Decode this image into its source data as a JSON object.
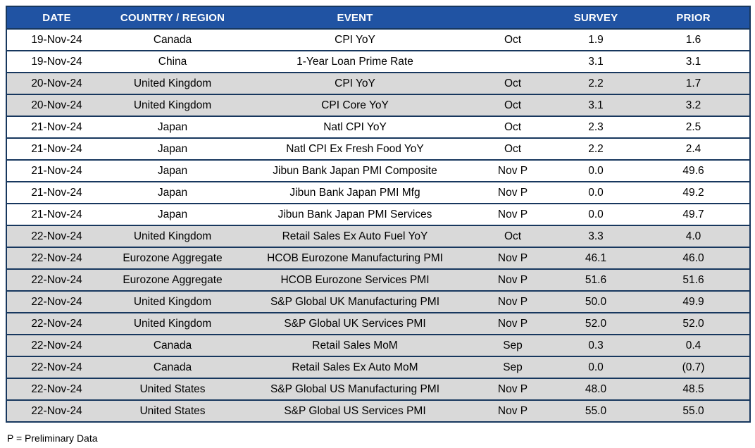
{
  "chart_data": {
    "type": "table",
    "title": "",
    "columns": [
      "DATE",
      "COUNTRY / REGION",
      "EVENT",
      "",
      "SURVEY",
      "PRIOR"
    ],
    "rows": [
      {
        "date": "19-Nov-24",
        "country": "Canada",
        "event": "CPI YoY",
        "period": "Oct",
        "survey": "1.9",
        "prior": "1.6"
      },
      {
        "date": "19-Nov-24",
        "country": "China",
        "event": "1-Year Loan Prime Rate",
        "period": "",
        "survey": "3.1",
        "prior": "3.1"
      },
      {
        "date": "20-Nov-24",
        "country": "United Kingdom",
        "event": "CPI YoY",
        "period": "Oct",
        "survey": "2.2",
        "prior": "1.7"
      },
      {
        "date": "20-Nov-24",
        "country": "United Kingdom",
        "event": "CPI Core YoY",
        "period": "Oct",
        "survey": "3.1",
        "prior": "3.2"
      },
      {
        "date": "21-Nov-24",
        "country": "Japan",
        "event": "Natl CPI YoY",
        "period": "Oct",
        "survey": "2.3",
        "prior": "2.5"
      },
      {
        "date": "21-Nov-24",
        "country": "Japan",
        "event": "Natl CPI Ex Fresh Food YoY",
        "period": "Oct",
        "survey": "2.2",
        "prior": "2.4"
      },
      {
        "date": "21-Nov-24",
        "country": "Japan",
        "event": "Jibun Bank Japan PMI Composite",
        "period": "Nov P",
        "survey": "0.0",
        "prior": "49.6"
      },
      {
        "date": "21-Nov-24",
        "country": "Japan",
        "event": "Jibun Bank Japan PMI Mfg",
        "period": "Nov P",
        "survey": "0.0",
        "prior": "49.2"
      },
      {
        "date": "21-Nov-24",
        "country": "Japan",
        "event": "Jibun Bank Japan PMI Services",
        "period": "Nov P",
        "survey": "0.0",
        "prior": "49.7"
      },
      {
        "date": "22-Nov-24",
        "country": "United Kingdom",
        "event": "Retail Sales Ex Auto Fuel YoY",
        "period": "Oct",
        "survey": "3.3",
        "prior": "4.0"
      },
      {
        "date": "22-Nov-24",
        "country": "Eurozone Aggregate",
        "event": "HCOB Eurozone Manufacturing PMI",
        "period": "Nov P",
        "survey": "46.1",
        "prior": "46.0"
      },
      {
        "date": "22-Nov-24",
        "country": "Eurozone Aggregate",
        "event": "HCOB Eurozone Services PMI",
        "period": "Nov P",
        "survey": "51.6",
        "prior": "51.6"
      },
      {
        "date": "22-Nov-24",
        "country": "United Kingdom",
        "event": "S&P Global UK Manufacturing PMI",
        "period": "Nov P",
        "survey": "50.0",
        "prior": "49.9"
      },
      {
        "date": "22-Nov-24",
        "country": "United Kingdom",
        "event": "S&P Global UK Services PMI",
        "period": "Nov P",
        "survey": "52.0",
        "prior": "52.0"
      },
      {
        "date": "22-Nov-24",
        "country": "Canada",
        "event": "Retail Sales MoM",
        "period": "Sep",
        "survey": "0.3",
        "prior": "0.4"
      },
      {
        "date": "22-Nov-24",
        "country": "Canada",
        "event": "Retail Sales Ex Auto MoM",
        "period": "Sep",
        "survey": "0.0",
        "prior": "(0.7)"
      },
      {
        "date": "22-Nov-24",
        "country": "United States",
        "event": "S&P Global US Manufacturing PMI",
        "period": "Nov P",
        "survey": "48.0",
        "prior": "48.5"
      },
      {
        "date": "22-Nov-24",
        "country": "United States",
        "event": "S&P Global US Services PMI",
        "period": "Nov P",
        "survey": "55.0",
        "prior": "55.0"
      }
    ],
    "layout_hints": {
      "banding": "rows grouped by date, alternating white and gray per date group",
      "grid": "horizontal separators only, no vertical gridlines"
    }
  },
  "footer": {
    "note": "P = Preliminary Data"
  },
  "colors": {
    "header_bg": "#2053A3",
    "header_text": "#FFFFFF",
    "row_bg": "#FFFFFF",
    "row_alt_bg": "#D9D9D9",
    "border": "#17375E"
  }
}
